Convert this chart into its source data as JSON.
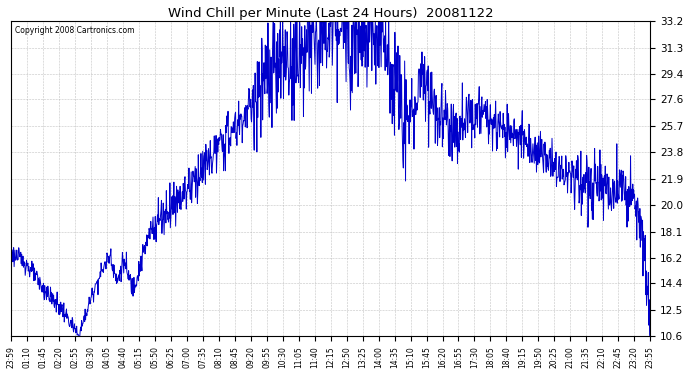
{
  "title": "Wind Chill per Minute (Last 24 Hours)  20081122",
  "copyright": "Copyright 2008 Cartronics.com",
  "line_color": "#0000cc",
  "background_color": "#ffffff",
  "grid_color": "#aaaaaa",
  "yticks": [
    10.6,
    12.5,
    14.4,
    16.2,
    18.1,
    20.0,
    21.9,
    23.8,
    25.7,
    27.6,
    29.4,
    31.3,
    33.2
  ],
  "ylim": [
    10.6,
    33.2
  ],
  "xtick_labels": [
    "23:59",
    "01:10",
    "01:45",
    "02:20",
    "02:55",
    "03:30",
    "04:05",
    "04:40",
    "05:15",
    "05:50",
    "06:25",
    "07:00",
    "07:35",
    "08:10",
    "08:45",
    "09:20",
    "09:55",
    "10:30",
    "11:05",
    "11:40",
    "12:15",
    "12:50",
    "13:25",
    "14:00",
    "14:35",
    "15:10",
    "15:45",
    "16:20",
    "16:55",
    "17:30",
    "18:05",
    "18:40",
    "19:15",
    "19:50",
    "20:25",
    "21:00",
    "21:35",
    "22:10",
    "22:45",
    "23:20",
    "23:55"
  ],
  "num_points": 1440,
  "figwidth": 6.9,
  "figheight": 3.75,
  "dpi": 100
}
